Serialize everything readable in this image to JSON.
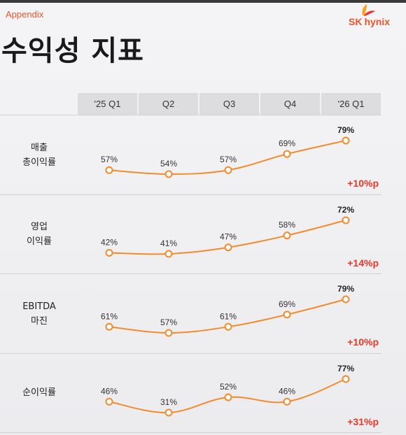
{
  "header": {
    "section": "Appendix",
    "title": "수익성 지표",
    "logo_sk": "SK",
    "logo_hynix": "hynix"
  },
  "colors": {
    "accent": "#e8572a",
    "line": "#f28b2c",
    "delta": "#e8362a"
  },
  "chart_data": {
    "type": "line",
    "categories": [
      "'25 Q1",
      "Q2",
      "Q3",
      "Q4",
      "'26 Q1"
    ],
    "unit": "%",
    "series": [
      {
        "name": "매출 총이익률",
        "label_lines": [
          "매출",
          "총이익률"
        ],
        "values": [
          57,
          54,
          57,
          69,
          79
        ],
        "delta": "+10%p"
      },
      {
        "name": "영업 이익률",
        "label_lines": [
          "영업",
          "이익률"
        ],
        "values": [
          42,
          41,
          47,
          58,
          72
        ],
        "delta": "+14%p"
      },
      {
        "name": "EBITDA 마진",
        "label_lines": [
          "EBITDA",
          "마진"
        ],
        "values": [
          61,
          57,
          61,
          69,
          79
        ],
        "delta": "+10%p"
      },
      {
        "name": "순이익률",
        "label_lines": [
          "순이익률"
        ],
        "values": [
          46,
          31,
          52,
          46,
          77
        ],
        "delta": "+31%p"
      }
    ]
  }
}
